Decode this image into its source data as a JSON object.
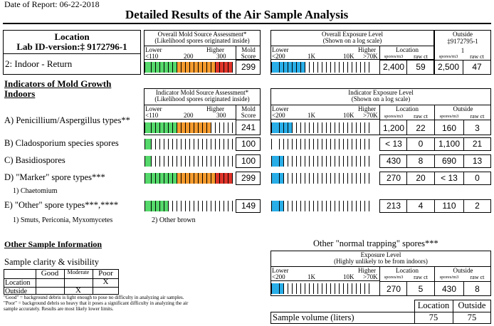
{
  "report_date": "Date of Report: 06-22-2018",
  "title": "Detailed Results of the Air Sample Analysis",
  "location": {
    "heading": "Location",
    "labid": "Lab ID-version:‡ 9172796-1",
    "name": "2: Indoor - Return"
  },
  "overall": {
    "mold_title1": "Overall Mold Source Assessment*",
    "mold_title2": "(Likelihood spores originated inside)",
    "lower": "Lower",
    "higher": "Higher",
    "mold_lbl1": "Mold",
    "mold_lbl2": "Score",
    "tick1": "<110",
    "tick2": "200",
    "tick3": "300",
    "score": "299",
    "exp_title1": "Overall Exposure Level",
    "exp_title2": "(Shown on a log scale)",
    "e_tick1": "<200",
    "e_tick2": "1K",
    "e_tick3": "10K",
    "e_tick4": ">70K",
    "loc_lbl": "Location",
    "spores_m3": "spores/m3",
    "raw_ct": "raw ct",
    "loc_spores": "2,400",
    "loc_raw": "59",
    "outside_lbl": "Outside",
    "outside_id": "‡9172795-1",
    "outside_n": "1",
    "out_spores": "2,500",
    "out_raw": "47"
  },
  "indicators": {
    "heading1": "Indicators of Mold Growth",
    "heading2": "Indoors",
    "mold_title1": "Indicator Mold Source Assessment*",
    "mold_title2": "(Likelihood spores originated inside)",
    "exp_title1": "Indicator Exposure Level",
    "exp_title2": "(Shown on a log scale)",
    "outside_lbl": "Outside",
    "rows": [
      {
        "label": "A) Penicillium/Aspergillus types**",
        "score": "241",
        "loc_spores": "1,200",
        "loc_raw": "22",
        "out_spores": "160",
        "out_raw": "3"
      },
      {
        "label": "B) Cladosporium species spores",
        "score": "100",
        "loc_spores": "< 13",
        "loc_raw": "0",
        "out_spores": "1,100",
        "out_raw": "21"
      },
      {
        "label": "C) Basidiospores",
        "score": "100",
        "loc_spores": "430",
        "loc_raw": "8",
        "out_spores": "690",
        "out_raw": "13"
      },
      {
        "label": "D) \"Marker\" spore types***",
        "score": "299",
        "loc_spores": "270",
        "loc_raw": "20",
        "out_spores": "< 13",
        "out_raw": "0"
      },
      {
        "label": "E) \"Other\" spore types***,****",
        "score": "149",
        "loc_spores": "213",
        "loc_raw": "4",
        "out_spores": "110",
        "out_raw": "2"
      }
    ],
    "marker_note": "1) Chaetomium",
    "other_note1": "1) Smuts, Periconia, Myxomycetes",
    "other_note2": "2) Other brown"
  },
  "other_info": {
    "heading": "Other Sample Information",
    "clarity": "Sample clarity & visibility",
    "good": "Good",
    "moderate": "Moderate",
    "poor": "Poor",
    "location": "Location",
    "outside": "Outside",
    "mark": "X",
    "note1": "\"Good\" = background debris is light enough to pose no difficulty in analyzing air samples.",
    "note2": "\"Poor\" = background debris so heavy that it poses a significant difficulty in analyzing the air",
    "note3": "sample accurately. Results are most likely lower limits."
  },
  "normal": {
    "heading": "Other \"normal trapping\" spores***",
    "title1": "Exposure Level",
    "title2": "(Highly unlikely to be from indoors)",
    "loc_spores": "270",
    "loc_raw": "5",
    "out_spores": "430",
    "out_raw": "8"
  },
  "volume": {
    "label": "Sample volume (liters)",
    "location": "Location",
    "outside": "Outside",
    "loc_val": "75",
    "out_val": "75"
  },
  "colors": {
    "green": "#55d96b",
    "orange": "#f49a2d",
    "red": "#e0342a",
    "blue": "#29aee8"
  }
}
